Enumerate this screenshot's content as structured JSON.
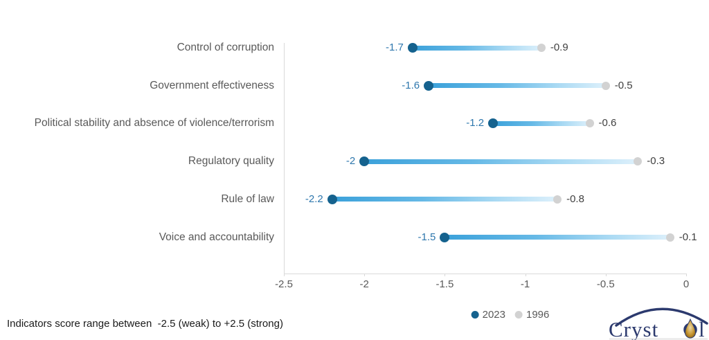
{
  "chart_data": {
    "type": "dumbbell",
    "title": "",
    "xlabel": "",
    "ylabel": "",
    "categories": [
      "Control of corruption",
      "Government effectiveness",
      "Political stability and absence of violence/terrorism",
      "Regulatory quality",
      "Rule of law",
      "Voice and accountability"
    ],
    "series": [
      {
        "name": "2023",
        "values": [
          -1.7,
          -1.6,
          -1.2,
          -2,
          -2.2,
          -1.5
        ],
        "labels": [
          "-1.7",
          "-1.6",
          "-1.2",
          "-2",
          "-2.2",
          "-1.5"
        ],
        "marker_color": "#15628e",
        "label_color": "#2e77ad"
      },
      {
        "name": "1996",
        "values": [
          -0.9,
          -0.5,
          -0.6,
          -0.3,
          -0.8,
          -0.1
        ],
        "labels": [
          "-0.9",
          "-0.5",
          "-0.6",
          "-0.3",
          "-0.8",
          "-0.1"
        ],
        "marker_color": "#d2d2d2",
        "label_color": "#404040"
      }
    ],
    "xlim": [
      -2.5,
      0
    ],
    "x_ticks": [
      {
        "value": -2.5,
        "label": "-2.5"
      },
      {
        "value": -2,
        "label": "-2"
      },
      {
        "value": -1.5,
        "label": "-1.5"
      },
      {
        "value": -1,
        "label": "-1"
      },
      {
        "value": -0.5,
        "label": "-0.5"
      },
      {
        "value": 0,
        "label": "0"
      }
    ],
    "grid": false,
    "legend": [
      "2023",
      "1996"
    ],
    "legend_position": "bottom-center",
    "connector_gradient": [
      "#3ba1da",
      "#66b9e6",
      "#a8d9f3",
      "#ddf0fb"
    ]
  },
  "footer": {
    "note": "Indicators score range between  -2.5 (weak) to +2.5 (strong)"
  },
  "logo": {
    "name": "Crystol",
    "text_prefix": "Cryst",
    "text_suffix": "l"
  },
  "colors": {
    "axis": "#d9d9d9",
    "muted_text": "#595959",
    "footer_text": "#1a1a1a",
    "logo_navy": "#2c3a6e",
    "logo_gold": "#b9852b"
  }
}
